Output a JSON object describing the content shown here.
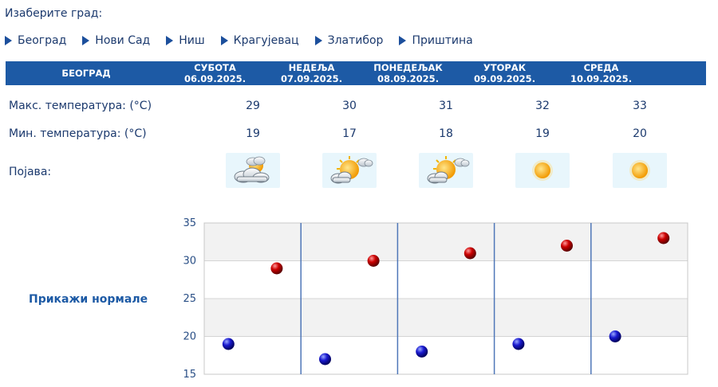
{
  "prompt": "Изаберите град:",
  "cities": [
    "Београд",
    "Нови Сад",
    "Ниш",
    "Крагујевац",
    "Златибор",
    "Приштина"
  ],
  "table": {
    "city_header": "БЕОГРАД",
    "days": [
      {
        "name": "СУБОТА",
        "date": "06.09.2025."
      },
      {
        "name": "НЕДЕЉА",
        "date": "07.09.2025."
      },
      {
        "name": "ПОНЕДЕЉАК",
        "date": "08.09.2025."
      },
      {
        "name": "УТОРАК",
        "date": "09.09.2025."
      },
      {
        "name": "СРЕДА",
        "date": "10.09.2025."
      }
    ],
    "max_label": "Макс. температура: (°C)",
    "min_label": "Мин. температура: (°C)",
    "weather_label": "Појава:",
    "max": [
      "29",
      "30",
      "31",
      "32",
      "33"
    ],
    "min": [
      "19",
      "17",
      "18",
      "19",
      "20"
    ],
    "weather_icons": [
      "partly-cloudy-sun-icon",
      "sun-cloud-icon",
      "sun-cloud-icon",
      "sun-icon",
      "sun-icon"
    ]
  },
  "normals_link": "Прикажи нормале",
  "colors": {
    "header_bg": "#1d5aa5",
    "text": "#1c3a6e",
    "max_marker": "#cc0000",
    "min_marker": "#1a1ad0"
  },
  "chart_data": {
    "type": "scatter",
    "ylim": [
      15,
      35
    ],
    "yticks": [
      "15",
      "20",
      "25",
      "30",
      "35"
    ],
    "series": [
      {
        "values": [
          29,
          30,
          31,
          32,
          33
        ]
      },
      {
        "values": [
          19,
          17,
          18,
          19,
          20
        ]
      }
    ],
    "grid": true
  }
}
